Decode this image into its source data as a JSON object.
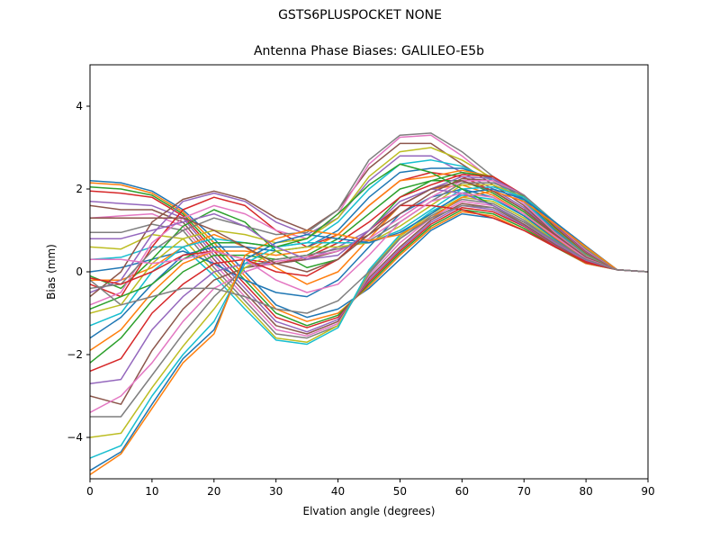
{
  "figure_title": "GSTS6PLUSPOCKET NONE",
  "chart_data": {
    "type": "line",
    "title": "Antenna Phase Biases: GALILEO-E5b",
    "xlabel": "Elvation angle (degrees)",
    "ylabel": "Bias (mm)",
    "xlim": [
      0,
      90
    ],
    "ylim": [
      -5,
      5
    ],
    "xticks": [
      0,
      10,
      20,
      30,
      40,
      50,
      60,
      70,
      80,
      90
    ],
    "yticks": [
      -4,
      -2,
      0,
      2,
      4
    ],
    "grid": false,
    "legend": "none",
    "colors": [
      "#1f77b4",
      "#ff7f0e",
      "#2ca02c",
      "#d62728",
      "#9467bd",
      "#8c564b",
      "#e377c2",
      "#7f7f7f",
      "#bcbd22",
      "#17becf"
    ],
    "x": [
      0,
      5,
      10,
      15,
      20,
      25,
      30,
      35,
      40,
      45,
      50,
      55,
      60,
      65,
      70,
      75,
      80,
      85,
      90
    ],
    "series": [
      {
        "values": [
          2.2,
          2.15,
          1.95,
          1.5,
          0.8,
          0.0,
          -0.8,
          -1.1,
          -0.9,
          -0.4,
          0.3,
          1.0,
          1.4,
          1.3,
          1.0,
          0.6,
          0.2,
          0.05,
          0
        ]
      },
      {
        "values": [
          2.15,
          2.1,
          1.9,
          1.45,
          0.7,
          -0.1,
          -0.9,
          -1.2,
          -1.0,
          -0.35,
          0.4,
          1.05,
          1.45,
          1.35,
          1.0,
          0.6,
          0.2,
          0.05,
          0
        ]
      },
      {
        "values": [
          2.05,
          2.0,
          1.85,
          1.4,
          0.6,
          -0.2,
          -1.0,
          -1.3,
          -1.05,
          -0.3,
          0.45,
          1.1,
          1.5,
          1.4,
          1.05,
          0.6,
          0.22,
          0.05,
          0
        ]
      },
      {
        "values": [
          1.95,
          1.9,
          1.8,
          1.35,
          0.5,
          -0.3,
          -1.1,
          -1.35,
          -1.1,
          -0.25,
          0.5,
          1.15,
          1.55,
          1.45,
          1.1,
          0.62,
          0.22,
          0.05,
          0
        ]
      },
      {
        "values": [
          1.7,
          1.65,
          1.6,
          1.3,
          0.4,
          -0.4,
          -1.2,
          -1.45,
          -1.15,
          -0.2,
          0.55,
          1.2,
          1.6,
          1.5,
          1.12,
          0.65,
          0.25,
          0.05,
          0
        ]
      },
      {
        "values": [
          1.6,
          1.5,
          1.5,
          1.2,
          0.3,
          -0.5,
          -1.3,
          -1.5,
          -1.2,
          -0.15,
          0.6,
          1.25,
          1.65,
          1.55,
          1.15,
          0.66,
          0.25,
          0.05,
          0
        ]
      },
      {
        "values": [
          1.3,
          1.35,
          1.4,
          1.1,
          0.2,
          -0.6,
          -1.4,
          -1.55,
          -1.25,
          -0.1,
          0.7,
          1.3,
          1.7,
          1.6,
          1.2,
          0.7,
          0.27,
          0.05,
          0
        ]
      },
      {
        "values": [
          0.95,
          0.95,
          1.15,
          1.0,
          0.1,
          -0.7,
          -1.5,
          -1.6,
          -1.3,
          -0.05,
          0.8,
          1.35,
          1.75,
          1.65,
          1.25,
          0.72,
          0.28,
          0.05,
          0
        ]
      },
      {
        "values": [
          0.6,
          0.55,
          0.9,
          0.8,
          0.0,
          -0.8,
          -1.6,
          -1.7,
          -1.3,
          0.0,
          0.85,
          1.4,
          1.8,
          1.7,
          1.3,
          0.75,
          0.3,
          0.05,
          0
        ]
      },
      {
        "values": [
          0.3,
          0.35,
          0.6,
          0.6,
          -0.1,
          -0.9,
          -1.65,
          -1.75,
          -1.35,
          0.05,
          0.9,
          1.45,
          1.85,
          1.75,
          1.35,
          0.78,
          0.3,
          0.05,
          0
        ]
      },
      {
        "values": [
          0.0,
          0.1,
          0.3,
          0.5,
          0.2,
          -0.2,
          -0.5,
          -0.6,
          -0.2,
          0.6,
          1.4,
          1.8,
          2.0,
          1.8,
          1.35,
          0.8,
          0.3,
          0.05,
          0
        ]
      },
      {
        "values": [
          -0.2,
          -0.2,
          0.1,
          0.6,
          0.9,
          0.6,
          0.1,
          -0.3,
          0.0,
          0.8,
          1.6,
          2.0,
          2.1,
          1.85,
          1.4,
          0.82,
          0.32,
          0.05,
          0
        ]
      },
      {
        "values": [
          -0.1,
          -0.4,
          0.3,
          1.1,
          1.5,
          1.2,
          0.5,
          0.1,
          0.3,
          1.0,
          1.8,
          2.2,
          2.2,
          1.9,
          1.45,
          0.85,
          0.33,
          0.05,
          0
        ]
      },
      {
        "values": [
          -0.3,
          -0.6,
          0.6,
          1.5,
          1.8,
          1.6,
          1.0,
          0.6,
          0.9,
          1.6,
          2.2,
          2.4,
          2.3,
          1.95,
          1.5,
          0.88,
          0.34,
          0.05,
          0
        ]
      },
      {
        "values": [
          -0.5,
          -0.2,
          0.9,
          1.7,
          1.9,
          1.7,
          1.2,
          0.9,
          1.3,
          2.2,
          2.8,
          2.8,
          2.4,
          2.0,
          1.55,
          0.9,
          0.35,
          0.05,
          0
        ]
      },
      {
        "values": [
          -0.6,
          0.0,
          1.2,
          1.75,
          1.95,
          1.75,
          1.3,
          1.0,
          1.5,
          2.5,
          3.1,
          3.1,
          2.6,
          2.1,
          1.6,
          0.92,
          0.36,
          0.05,
          0
        ]
      },
      {
        "values": [
          -0.8,
          -0.5,
          0.7,
          1.3,
          1.6,
          1.4,
          1.0,
          0.8,
          1.4,
          2.6,
          3.25,
          3.3,
          2.8,
          2.2,
          1.65,
          0.95,
          0.38,
          0.05,
          0
        ]
      },
      {
        "values": [
          -0.4,
          -0.3,
          0.5,
          1.0,
          1.3,
          1.1,
          0.9,
          0.95,
          1.5,
          2.7,
          3.3,
          3.35,
          2.9,
          2.3,
          1.7,
          0.98,
          0.4,
          0.05,
          0
        ]
      },
      {
        "values": [
          -1.0,
          -0.8,
          0.2,
          0.8,
          1.0,
          0.9,
          0.7,
          0.8,
          1.3,
          2.3,
          2.9,
          3.0,
          2.7,
          2.25,
          1.75,
          1.0,
          0.42,
          0.05,
          0
        ]
      },
      {
        "values": [
          -1.3,
          -1.0,
          0.0,
          0.6,
          0.8,
          0.7,
          0.6,
          0.7,
          1.2,
          2.0,
          2.6,
          2.7,
          2.55,
          2.2,
          1.7,
          1.0,
          0.43,
          0.05,
          0
        ]
      },
      {
        "values": [
          -1.6,
          -1.1,
          -0.3,
          0.4,
          0.6,
          0.6,
          0.5,
          0.6,
          1.0,
          1.8,
          2.4,
          2.5,
          2.5,
          2.25,
          1.75,
          1.02,
          0.44,
          0.05,
          0
        ]
      },
      {
        "values": [
          -1.9,
          -1.4,
          -0.5,
          0.2,
          0.5,
          0.5,
          0.4,
          0.5,
          0.9,
          1.6,
          2.2,
          2.3,
          2.45,
          2.3,
          1.8,
          1.05,
          0.45,
          0.05,
          0
        ]
      },
      {
        "values": [
          -2.2,
          -1.6,
          -0.7,
          0.0,
          0.4,
          0.4,
          0.3,
          0.4,
          0.8,
          1.4,
          2.0,
          2.2,
          2.4,
          2.3,
          1.82,
          1.07,
          0.46,
          0.05,
          0
        ]
      },
      {
        "values": [
          -2.4,
          -2.1,
          -1.0,
          -0.3,
          0.2,
          0.3,
          0.2,
          0.35,
          0.7,
          1.2,
          1.8,
          2.1,
          2.35,
          2.3,
          1.85,
          1.1,
          0.47,
          0.05,
          0
        ]
      },
      {
        "values": [
          -2.7,
          -2.6,
          -1.4,
          -0.6,
          0.0,
          0.2,
          0.2,
          0.3,
          0.6,
          1.0,
          1.6,
          2.0,
          2.3,
          2.25,
          1.85,
          1.12,
          0.48,
          0.05,
          0
        ]
      },
      {
        "values": [
          -3.0,
          -3.2,
          -1.9,
          -0.9,
          -0.2,
          0.1,
          0.2,
          0.3,
          0.5,
          0.9,
          1.4,
          1.9,
          2.25,
          2.2,
          1.85,
          1.15,
          0.5,
          0.05,
          0
        ]
      },
      {
        "values": [
          -3.4,
          -3.0,
          -2.2,
          -1.2,
          -0.4,
          0.0,
          0.25,
          0.35,
          0.5,
          0.8,
          1.3,
          1.8,
          2.2,
          2.2,
          1.85,
          1.17,
          0.52,
          0.05,
          0
        ]
      },
      {
        "values": [
          -3.5,
          -3.5,
          -2.5,
          -1.5,
          -0.6,
          0.1,
          0.3,
          0.4,
          0.55,
          0.75,
          1.2,
          1.7,
          2.15,
          2.15,
          1.85,
          1.2,
          0.55,
          0.05,
          0
        ]
      },
      {
        "values": [
          -4.0,
          -3.9,
          -2.8,
          -1.8,
          -0.9,
          0.1,
          0.5,
          0.6,
          0.6,
          0.7,
          1.1,
          1.6,
          2.1,
          2.1,
          1.8,
          1.2,
          0.58,
          0.05,
          0
        ]
      },
      {
        "values": [
          -4.5,
          -4.2,
          -3.0,
          -2.0,
          -1.2,
          0.2,
          0.6,
          0.7,
          0.7,
          0.7,
          1.0,
          1.5,
          2.0,
          2.05,
          1.8,
          1.2,
          0.6,
          0.05,
          0
        ]
      },
      {
        "values": [
          -4.8,
          -4.35,
          -3.2,
          -2.1,
          -1.4,
          0.3,
          0.7,
          0.9,
          0.8,
          0.7,
          0.95,
          1.4,
          1.9,
          2.0,
          1.75,
          1.2,
          0.62,
          0.05,
          0
        ]
      },
      {
        "values": [
          -4.9,
          -4.4,
          -3.3,
          -2.2,
          -1.5,
          0.4,
          0.8,
          1.0,
          0.9,
          0.75,
          0.9,
          1.3,
          1.8,
          1.95,
          1.7,
          1.15,
          0.6,
          0.05,
          0
        ]
      },
      {
        "values": [
          -0.9,
          -0.6,
          -0.3,
          0.3,
          0.7,
          0.7,
          0.6,
          0.8,
          1.4,
          2.1,
          2.6,
          2.4,
          2.0,
          1.6,
          1.2,
          0.7,
          0.28,
          0.05,
          0
        ]
      },
      {
        "values": [
          -0.15,
          -0.3,
          0.0,
          0.4,
          0.5,
          0.3,
          0.0,
          -0.1,
          0.3,
          1.0,
          1.6,
          1.6,
          1.5,
          1.3,
          1.0,
          0.6,
          0.25,
          0.05,
          0
        ]
      },
      {
        "values": [
          0.8,
          0.8,
          1.0,
          1.2,
          1.4,
          1.1,
          0.6,
          0.3,
          0.4,
          1.0,
          1.7,
          2.0,
          1.9,
          1.6,
          1.2,
          0.7,
          0.28,
          0.05,
          0
        ]
      },
      {
        "values": [
          1.3,
          1.3,
          1.3,
          1.3,
          1.0,
          0.6,
          0.2,
          0.0,
          0.3,
          0.9,
          1.6,
          2.0,
          2.2,
          1.95,
          1.5,
          0.9,
          0.35,
          0.05,
          0
        ]
      },
      {
        "values": [
          0.3,
          0.3,
          0.2,
          0.3,
          0.5,
          0.3,
          -0.2,
          -0.5,
          -0.3,
          0.4,
          1.2,
          1.7,
          1.9,
          1.8,
          1.4,
          0.85,
          0.32,
          0.05,
          0
        ]
      },
      {
        "values": [
          -0.2,
          -0.8,
          -0.6,
          -0.4,
          -0.4,
          -0.6,
          -0.9,
          -1.0,
          -0.7,
          0.0,
          0.8,
          1.3,
          1.6,
          1.55,
          1.2,
          0.75,
          0.3,
          0.05,
          0
        ]
      }
    ]
  }
}
